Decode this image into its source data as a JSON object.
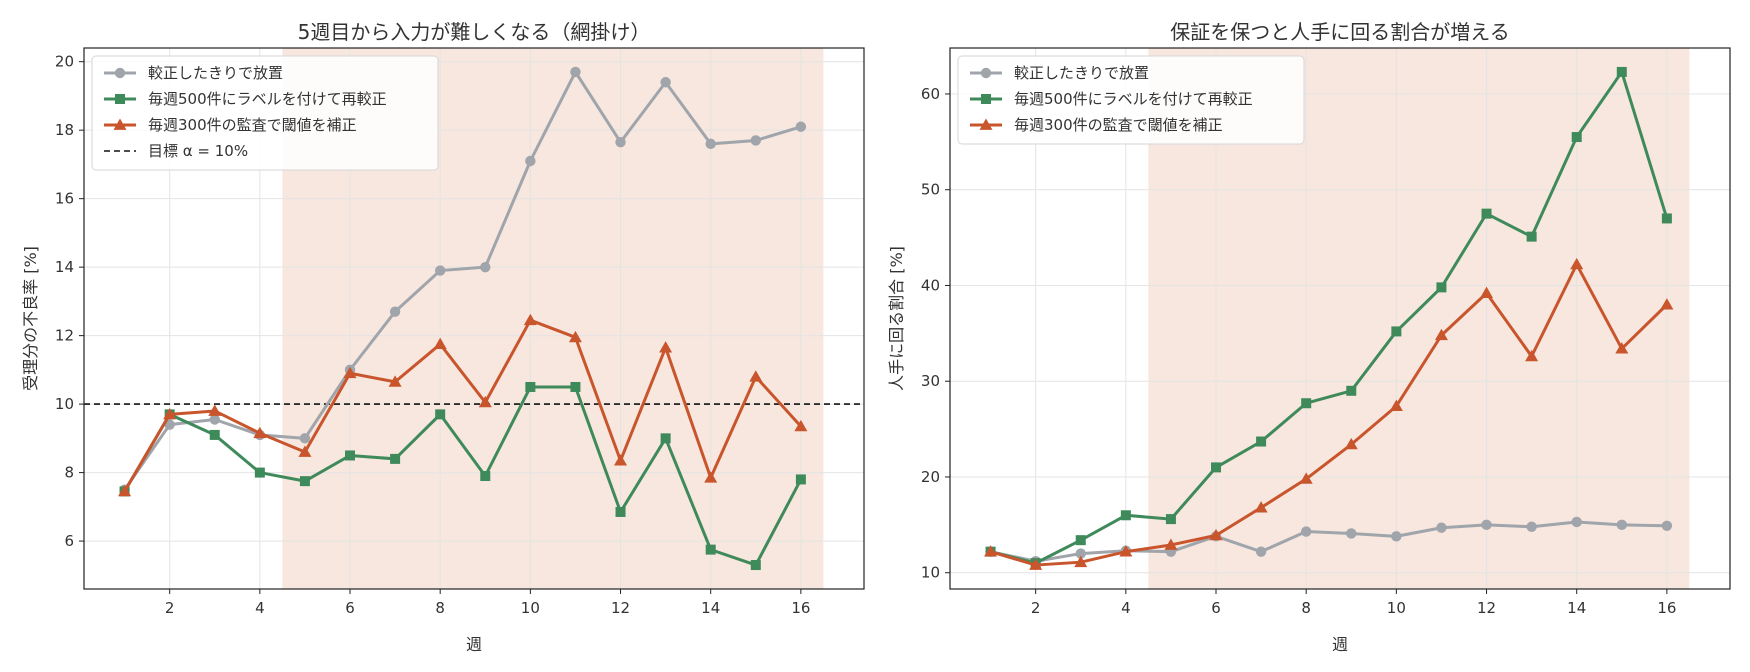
{
  "chart_data": [
    {
      "type": "line",
      "title": "5週目から入力が難しくなる（網掛け）",
      "xlabel": "週",
      "ylabel": "受理分の不良率 [%]",
      "xlim": [
        0.1,
        17.4
      ],
      "ylim": [
        4.6,
        20.4
      ],
      "xticks": [
        2,
        4,
        6,
        8,
        10,
        12,
        14,
        16
      ],
      "yticks": [
        6,
        8,
        10,
        12,
        14,
        16,
        18,
        20
      ],
      "grid": true,
      "legend_position": "top-left",
      "shaded_region": [
        4.5,
        16.5
      ],
      "target_line": {
        "label": "目標 α = 10%",
        "y": 10
      },
      "x": [
        1,
        2,
        3,
        4,
        5,
        6,
        7,
        8,
        9,
        10,
        11,
        12,
        13,
        14,
        15,
        16
      ],
      "series": [
        {
          "name": "較正したきりで放置",
          "marker": "circle",
          "values": [
            7.5,
            9.4,
            9.55,
            9.1,
            9.0,
            11.0,
            12.7,
            13.9,
            14.0,
            17.1,
            19.7,
            17.65,
            19.4,
            17.6,
            17.7,
            18.1
          ]
        },
        {
          "name": "毎週500件にラベルを付けて再較正",
          "marker": "square",
          "values": [
            7.45,
            9.7,
            9.1,
            8.0,
            7.75,
            8.5,
            8.4,
            9.7,
            7.9,
            10.5,
            10.5,
            6.85,
            9.0,
            5.75,
            5.3,
            7.8
          ]
        },
        {
          "name": "毎週300件の監査で閾値を補正",
          "marker": "triangle",
          "values": [
            7.45,
            9.7,
            9.8,
            9.15,
            8.6,
            10.9,
            10.65,
            11.75,
            10.05,
            12.45,
            11.95,
            8.35,
            11.65,
            7.85,
            10.8,
            9.35
          ]
        }
      ]
    },
    {
      "type": "line",
      "title": "保証を保つと人手に回る割合が増える",
      "xlabel": "週",
      "ylabel": "人手に回る割合 [%]",
      "xlim": [
        0.1,
        17.4
      ],
      "ylim": [
        8.3,
        64.8
      ],
      "xticks": [
        2,
        4,
        6,
        8,
        10,
        12,
        14,
        16
      ],
      "yticks": [
        10,
        20,
        30,
        40,
        50,
        60
      ],
      "grid": true,
      "legend_position": "top-left",
      "shaded_region": [
        4.5,
        16.5
      ],
      "x": [
        1,
        2,
        3,
        4,
        5,
        6,
        7,
        8,
        9,
        10,
        11,
        12,
        13,
        14,
        15,
        16
      ],
      "series": [
        {
          "name": "較正したきりで放置",
          "marker": "circle",
          "values": [
            12.2,
            11.2,
            12.0,
            12.3,
            12.2,
            13.8,
            12.2,
            14.3,
            14.1,
            13.8,
            14.7,
            15.0,
            14.8,
            15.3,
            15.0,
            14.9
          ]
        },
        {
          "name": "毎週500件にラベルを付けて再較正",
          "marker": "square",
          "values": [
            12.2,
            11.0,
            13.4,
            16.0,
            15.6,
            21.0,
            23.7,
            27.7,
            29.0,
            35.2,
            39.8,
            47.5,
            45.1,
            55.5,
            62.3,
            47.0
          ]
        },
        {
          "name": "毎週300件の監査で閾値を補正",
          "marker": "triangle",
          "values": [
            12.2,
            10.8,
            11.1,
            12.2,
            12.9,
            13.9,
            16.8,
            19.8,
            23.4,
            27.4,
            34.8,
            39.2,
            32.6,
            42.2,
            33.4,
            38.0
          ]
        }
      ]
    }
  ],
  "colors": {
    "series": [
      "#a0a4ab",
      "#3f8a5b",
      "#c9552d"
    ],
    "shade": "#f0d3c2",
    "target": "#111111",
    "grid": "#e4e4e4",
    "axis": "#222222"
  }
}
